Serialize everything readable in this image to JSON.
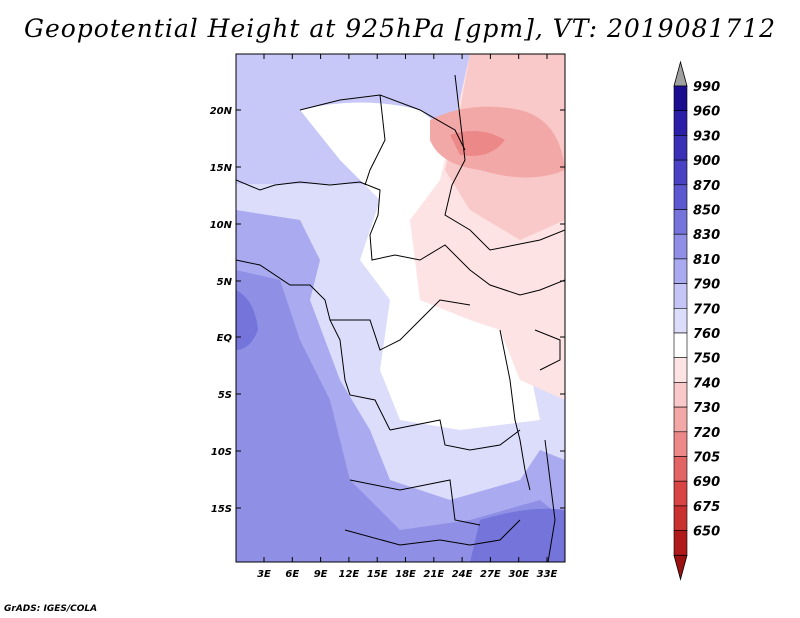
{
  "title": "Geopotential Height at 925hPa [gpm], VT: 2019081712",
  "credit": "GrADS: IGES/COLA",
  "map": {
    "lat_labels": [
      "20N",
      "15N",
      "10N",
      "5N",
      "EQ",
      "5S",
      "10S",
      "15S"
    ],
    "lon_labels": [
      "3E",
      "6E",
      "9E",
      "12E",
      "15E",
      "18E",
      "21E",
      "24E",
      "27E",
      "30E",
      "33E"
    ]
  },
  "colorbar": {
    "levels": [
      "990",
      "960",
      "930",
      "900",
      "870",
      "850",
      "830",
      "810",
      "790",
      "770",
      "760",
      "750",
      "740",
      "730",
      "720",
      "705",
      "690",
      "675",
      "650"
    ],
    "colors": [
      "#1a0d8f",
      "#2b1fa8",
      "#3a30b8",
      "#4a42c4",
      "#5c58d0",
      "#7474db",
      "#8f8fe6",
      "#aaaaf0",
      "#c4c4f7",
      "#dcdcfb",
      "#ffffff",
      "#fde3e3",
      "#f9c8c8",
      "#f3a8a8",
      "#ec8888",
      "#e26464",
      "#d94444",
      "#c93030",
      "#b01a1a"
    ],
    "top_arrow_color": "#a0a0a0",
    "bottom_arrow_color": "#9b1010"
  }
}
